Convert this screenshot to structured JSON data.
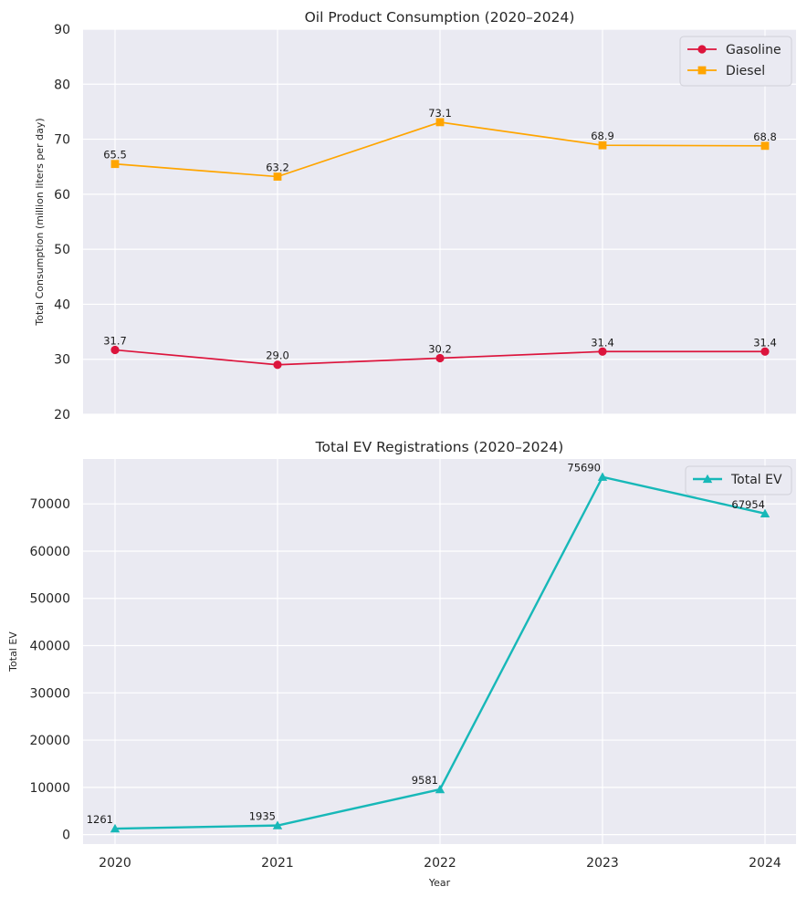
{
  "chart_data": [
    {
      "type": "line",
      "title": "Oil Product Consumption (2020–2024)",
      "xlabel": "",
      "ylabel": "Total Consumption (million liters per day)",
      "x": [
        2020,
        2021,
        2022,
        2023,
        2024
      ],
      "ylim": [
        20,
        90
      ],
      "yticks": [
        20,
        30,
        40,
        50,
        60,
        70,
        80,
        90
      ],
      "grid": true,
      "legend_position": "top-right",
      "series": [
        {
          "name": "Gasoline",
          "values": [
            31.7,
            29.0,
            30.2,
            31.4,
            31.4
          ],
          "labels": [
            "31.7",
            "29.0",
            "30.2",
            "31.4",
            "31.4"
          ],
          "color": "#dc143c",
          "marker": "circle"
        },
        {
          "name": "Diesel",
          "values": [
            65.5,
            63.2,
            73.1,
            68.9,
            68.8
          ],
          "labels": [
            "65.5",
            "63.2",
            "73.1",
            "68.9",
            "68.8"
          ],
          "color": "#ffa500",
          "marker": "square"
        }
      ]
    },
    {
      "type": "line",
      "title": "Total EV Registrations (2020–2024)",
      "xlabel": "Year",
      "ylabel": "Total EV",
      "x": [
        2020,
        2021,
        2022,
        2023,
        2024
      ],
      "xticks": [
        "2020",
        "2021",
        "2022",
        "2023",
        "2024"
      ],
      "ylim": [
        -2000,
        79500
      ],
      "yticks": [
        0,
        10000,
        20000,
        30000,
        40000,
        50000,
        60000,
        70000
      ],
      "grid": true,
      "legend_position": "top-right",
      "series": [
        {
          "name": "Total EV",
          "values": [
            1261,
            1935,
            9581,
            75690,
            67954
          ],
          "labels": [
            "1261",
            "1935",
            "9581",
            "75690",
            "67954"
          ],
          "color": "#17b8b8",
          "marker": "triangle"
        }
      ]
    }
  ]
}
